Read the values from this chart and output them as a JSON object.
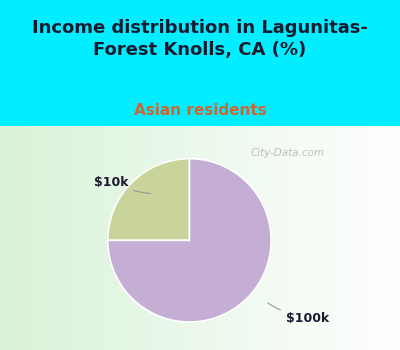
{
  "title": "Income distribution in Lagunitas-\nForest Knolls, CA (%)",
  "subtitle": "Asian residents",
  "slices": [
    25.0,
    75.0
  ],
  "labels": [
    "$10k",
    "$100k"
  ],
  "colors": [
    "#c8d49a",
    "#c4aed4"
  ],
  "background_cyan": "#00eeff",
  "title_color": "#1a1a2e",
  "subtitle_color": "#cc6633",
  "title_fontsize": 13,
  "subtitle_fontsize": 11,
  "label_fontsize": 9,
  "startangle": 90,
  "watermark": "City-Data.com"
}
